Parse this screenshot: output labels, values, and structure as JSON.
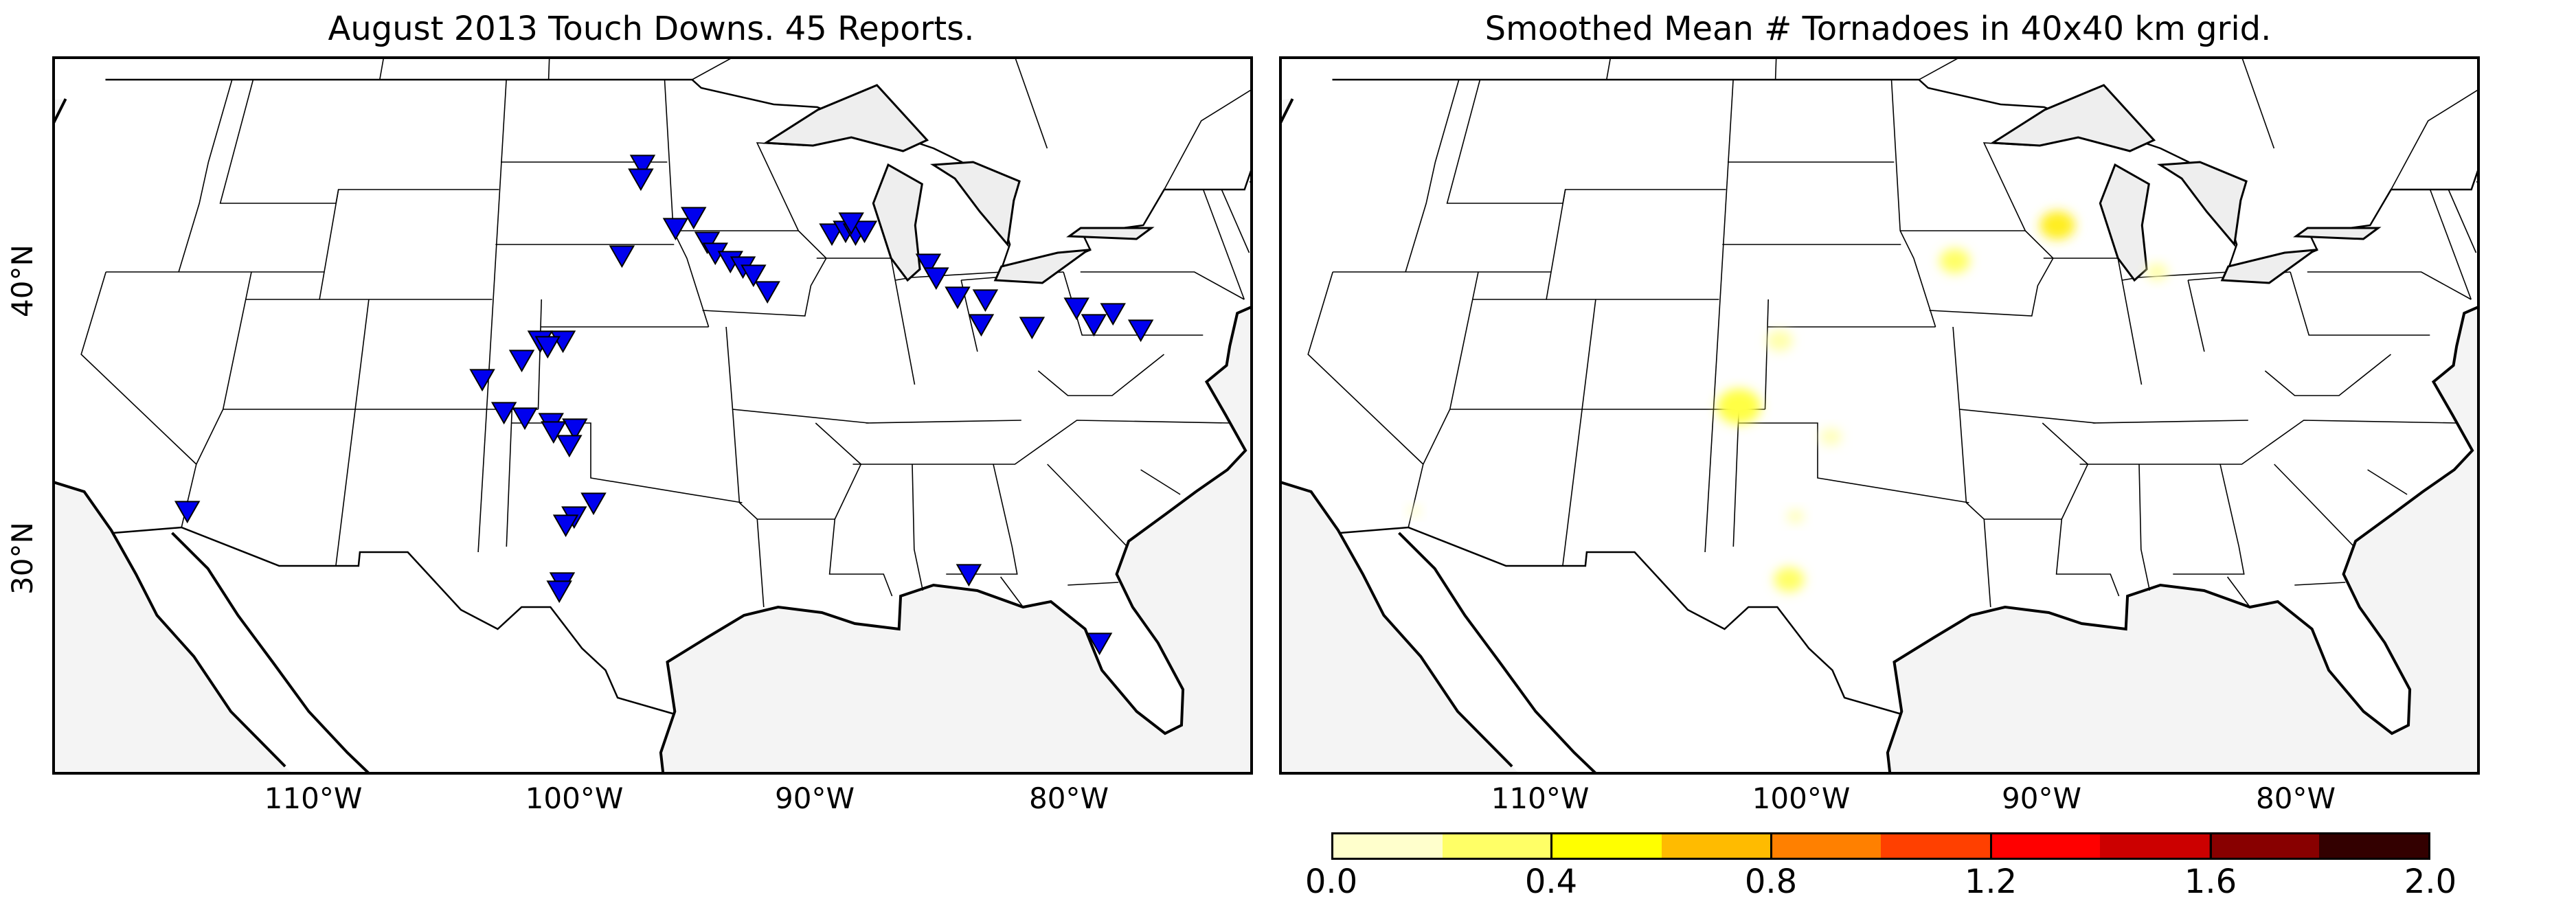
{
  "left_panel": {
    "title": "August 2013 Touch Downs. 45 Reports.",
    "marker_color": "#0000ee",
    "reports": [
      [
        -114.6,
        33.3
      ],
      [
        -104.2,
        38.1
      ],
      [
        -103.3,
        36.9
      ],
      [
        -102.5,
        36.7
      ],
      [
        -101.5,
        36.5
      ],
      [
        -100.6,
        36.3
      ],
      [
        -101.4,
        36.2
      ],
      [
        -100.8,
        35.7
      ],
      [
        -99.9,
        33.6
      ],
      [
        -100.6,
        33.1
      ],
      [
        -100.9,
        32.8
      ],
      [
        -101.0,
        30.7
      ],
      [
        -101.1,
        30.4
      ],
      [
        -102.7,
        38.8
      ],
      [
        -101.1,
        39.5
      ],
      [
        -102.0,
        39.5
      ],
      [
        -101.7,
        39.3
      ],
      [
        -98.7,
        42.6
      ],
      [
        -97.7,
        45.9
      ],
      [
        -96.4,
        43.6
      ],
      [
        -95.6,
        44.0
      ],
      [
        -95.1,
        43.1
      ],
      [
        -94.8,
        42.7
      ],
      [
        -94.2,
        42.4
      ],
      [
        -93.7,
        42.2
      ],
      [
        -92.8,
        41.3
      ],
      [
        -93.3,
        41.9
      ],
      [
        -89.8,
        43.4
      ],
      [
        -89.2,
        43.5
      ],
      [
        -88.8,
        43.4
      ],
      [
        -88.4,
        43.5
      ],
      [
        -86.0,
        42.3
      ],
      [
        -85.8,
        41.8
      ],
      [
        -84.4,
        40.1
      ],
      [
        -82.4,
        40.0
      ],
      [
        -79.9,
        40.1
      ],
      [
        -79.0,
        40.5
      ],
      [
        -86.7,
        31.0
      ],
      [
        -82.6,
        28.5
      ],
      [
        -85.1,
        41.1
      ],
      [
        -84.0,
        41.0
      ],
      [
        -80.4,
        40.7
      ],
      [
        -78.1,
        39.9
      ],
      [
        -88.9,
        43.8
      ],
      [
        -97.8,
        45.4
      ]
    ]
  },
  "right_panel": {
    "title": "Smoothed Mean # Tornadoes in 40x40 km grid.",
    "blobs": [
      {
        "lon": -103.0,
        "lat": 37.1,
        "r": 1.0,
        "color": "#ffff44"
      },
      {
        "lon": -101.0,
        "lat": 30.8,
        "r": 0.7,
        "color": "#ffff66"
      },
      {
        "lon": -89.8,
        "lat": 43.7,
        "r": 0.8,
        "color": "#ffee22"
      },
      {
        "lon": -94.3,
        "lat": 42.4,
        "r": 0.7,
        "color": "#ffff66"
      },
      {
        "lon": -101.5,
        "lat": 39.5,
        "r": 0.6,
        "color": "#ffffaa"
      },
      {
        "lon": -86.0,
        "lat": 42.0,
        "r": 0.5,
        "color": "#ffffaa"
      },
      {
        "lon": -99.5,
        "lat": 36.0,
        "r": 0.5,
        "color": "#ffffbb"
      },
      {
        "lon": -100.8,
        "lat": 33.1,
        "r": 0.4,
        "color": "#ffffbb"
      },
      {
        "lon": -114.6,
        "lat": 33.3,
        "r": 0.3,
        "color": "#ffffcc"
      }
    ]
  },
  "longitude_labels": [
    "110°W",
    "100°W",
    "90°W",
    "80°W"
  ],
  "latitude_labels": [
    "40°N",
    "30°N"
  ],
  "colorbar": {
    "colors": [
      "#ffffcc",
      "#ffff66",
      "#ffff00",
      "#ffbb00",
      "#ff8000",
      "#ff4000",
      "#ff0000",
      "#cc0000",
      "#880000",
      "#330000"
    ],
    "tick_labels": [
      "0.0",
      "0.4",
      "0.8",
      "1.2",
      "1.6",
      "2.0"
    ]
  }
}
